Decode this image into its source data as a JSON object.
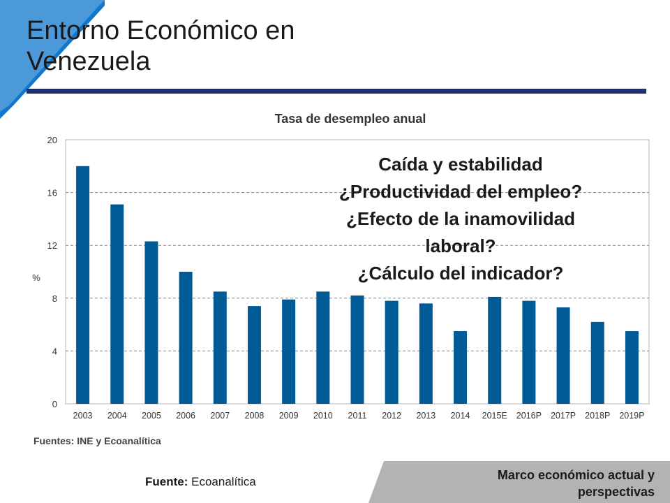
{
  "slide": {
    "title_line1": "Entorno Económico en",
    "title_line2": "Venezuela"
  },
  "callout": {
    "lines": [
      "Caída y estabilidad",
      "¿Productividad del empleo?",
      "¿Efecto de la inamovilidad",
      "laboral?",
      "¿Cálculo del indicador?"
    ]
  },
  "footer": {
    "source_label": "Fuente:",
    "source_value": "Ecoanalítica",
    "section_line1": "Marco económico actual y",
    "section_line2": "perspectivas"
  },
  "colors": {
    "accent_blue": "#1177cc",
    "title_rule": "#1b2f73",
    "bar": "#005a96"
  },
  "chart_data": {
    "type": "bar",
    "title": "Tasa de desempleo anual",
    "ylabel": "%",
    "xlabel": "",
    "categories": [
      "2003",
      "2004",
      "2005",
      "2006",
      "2007",
      "2008",
      "2009",
      "2010",
      "2011",
      "2012",
      "2013",
      "2014",
      "2015E",
      "2016P",
      "2017P",
      "2018P",
      "2019P"
    ],
    "values": [
      18.0,
      15.1,
      12.3,
      10.0,
      8.5,
      7.4,
      7.9,
      8.5,
      8.2,
      7.8,
      7.6,
      5.5,
      8.1,
      7.8,
      7.3,
      6.2,
      5.5
    ],
    "ylim": [
      0,
      20
    ],
    "yticks": [
      0,
      4,
      8,
      12,
      16,
      20
    ],
    "grid": true,
    "source_note": "Fuentes: INE y Ecoanalítica"
  }
}
